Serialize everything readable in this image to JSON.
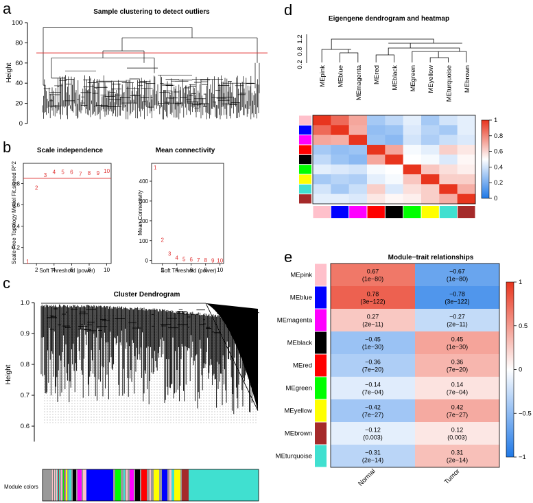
{
  "chart_data": [
    {
      "panel": "a",
      "type": "dendrogram",
      "title": "Sample clustering to detect outliers",
      "ylabel": "Height",
      "ylim": [
        0,
        100
      ],
      "yticks": [
        0,
        20,
        40,
        60,
        80,
        100
      ],
      "cut_height": 70
    },
    {
      "panel": "b",
      "type": "scatter",
      "title": "Scale independence",
      "xlabel": "Soft Threshold (power)",
      "ylabel": "Scale Free Topology Model Fit,signed R^2",
      "xticks": [
        2,
        4,
        6,
        8,
        10
      ],
      "yticks": [
        0.2,
        0.4,
        0.6,
        0.8
      ],
      "xlim": [
        0.5,
        10.5
      ],
      "ylim": [
        0.05,
        0.99
      ],
      "x": [
        1,
        2,
        3,
        4,
        5,
        6,
        7,
        8,
        9,
        10
      ],
      "y": [
        0.07,
        0.76,
        0.88,
        0.91,
        0.91,
        0.91,
        0.89,
        0.9,
        0.9,
        0.92
      ],
      "hline": 0.85
    },
    {
      "panel": "b",
      "type": "scatter",
      "title": "Mean connectivity",
      "xlabel": "Soft Threshold (power)",
      "ylabel": "Mean Connectivity",
      "xticks": [
        2,
        4,
        6,
        8,
        10
      ],
      "yticks": [
        0,
        100,
        200,
        300,
        400
      ],
      "xlim": [
        0.5,
        10.5
      ],
      "ylim": [
        -15,
        490
      ],
      "x": [
        1,
        2,
        3,
        4,
        5,
        6,
        7,
        8,
        9,
        10
      ],
      "y": [
        470,
        105,
        35,
        15,
        8,
        5,
        3,
        2,
        1,
        1
      ]
    },
    {
      "panel": "c",
      "type": "dendrogram",
      "title": "Cluster Dendrogram",
      "ylabel": "Height",
      "ylim": [
        0.5,
        1.0
      ],
      "yticks": [
        0.6,
        0.7,
        0.8,
        0.9,
        1.0
      ],
      "colors_label": "Module colors"
    },
    {
      "panel": "d",
      "type": "heatmap",
      "title": "Eigengene dendrogram and heatmap",
      "dendro_yticks": [
        "1.2",
        "0.8",
        "0.2"
      ],
      "modules": [
        "MEpink",
        "MEblue",
        "MEmagenta",
        "MEred",
        "MEblack",
        "MEgreen",
        "MEyellow",
        "MEturquoise",
        "MEbrown"
      ],
      "module_colors": [
        "#ffc0cb",
        "#0000ff",
        "#ff00ff",
        "#ff0000",
        "#000000",
        "#00ff00",
        "#ffff00",
        "#40e0d0",
        "#a52a2a"
      ],
      "matrix": [
        [
          1.0,
          0.87,
          0.72,
          0.3,
          0.36,
          0.44,
          0.3,
          0.4,
          0.44
        ],
        [
          0.87,
          1.0,
          0.7,
          0.26,
          0.28,
          0.42,
          0.34,
          0.3,
          0.44
        ],
        [
          0.72,
          0.7,
          1.0,
          0.28,
          0.24,
          0.4,
          0.32,
          0.38,
          0.42
        ],
        [
          0.3,
          0.26,
          0.28,
          1.0,
          0.72,
          0.48,
          0.44,
          0.62,
          0.56
        ],
        [
          0.36,
          0.28,
          0.24,
          0.72,
          1.0,
          0.5,
          0.48,
          0.42,
          0.52
        ],
        [
          0.44,
          0.42,
          0.4,
          0.48,
          0.5,
          1.0,
          0.64,
          0.58,
          0.54
        ],
        [
          0.3,
          0.34,
          0.32,
          0.44,
          0.48,
          0.64,
          1.0,
          0.62,
          0.62
        ],
        [
          0.4,
          0.3,
          0.38,
          0.62,
          0.42,
          0.58,
          0.62,
          1.0,
          0.7
        ],
        [
          0.44,
          0.44,
          0.42,
          0.56,
          0.52,
          0.54,
          0.62,
          0.7,
          1.0
        ]
      ],
      "colorbar_ticks": [
        "1",
        "0.8",
        "0.6",
        "0.4",
        "0.2",
        "0"
      ]
    },
    {
      "panel": "e",
      "type": "heatmap",
      "title": "Module−trait relationships",
      "rows": [
        "MEpink",
        "MEblue",
        "MEmagenta",
        "MEblack",
        "MEred",
        "MEgreen",
        "MEyellow",
        "MEbrown",
        "MEturquoise"
      ],
      "row_colors": [
        "#ffc0cb",
        "#0000ff",
        "#ff00ff",
        "#000000",
        "#ff0000",
        "#00ff00",
        "#ffff00",
        "#a52a2a",
        "#40e0d0"
      ],
      "columns": [
        "Normal",
        "Tumor"
      ],
      "values": [
        [
          0.67,
          -0.67
        ],
        [
          0.78,
          -0.78
        ],
        [
          0.27,
          -0.27
        ],
        [
          -0.45,
          0.45
        ],
        [
          -0.36,
          0.36
        ],
        [
          -0.14,
          0.14
        ],
        [
          -0.42,
          0.42
        ],
        [
          -0.12,
          0.12
        ],
        [
          -0.31,
          0.31
        ]
      ],
      "labels": [
        [
          "0.67",
          "−0.67"
        ],
        [
          "0.78",
          "−0.78"
        ],
        [
          "0.27",
          "−0.27"
        ],
        [
          "−0.45",
          "0.45"
        ],
        [
          "−0.36",
          "0.36"
        ],
        [
          "−0.14",
          "0.14"
        ],
        [
          "−0.42",
          "0.42"
        ],
        [
          "−0.12",
          "0.12"
        ],
        [
          "−0.31",
          "0.31"
        ]
      ],
      "pvalues": [
        [
          "(1e−80)",
          "(1e−80)"
        ],
        [
          "(3e−122)",
          "(3e−122)"
        ],
        [
          "(2e−11)",
          "(2e−11)"
        ],
        [
          "(1e−30)",
          "(1e−30)"
        ],
        [
          "(7e−20)",
          "(7e−20)"
        ],
        [
          "(7e−04)",
          "(7e−04)"
        ],
        [
          "(7e−27)",
          "(7e−27)"
        ],
        [
          "(0.003)",
          "(0.003)"
        ],
        [
          "(2e−14)",
          "(2e−14)"
        ]
      ],
      "colorbar_ticks": [
        "1",
        "0.5",
        "0",
        "−0.5",
        "−1"
      ]
    }
  ],
  "panel_labels": {
    "a": "a",
    "b": "b",
    "c": "c",
    "d": "d",
    "e": "e"
  }
}
